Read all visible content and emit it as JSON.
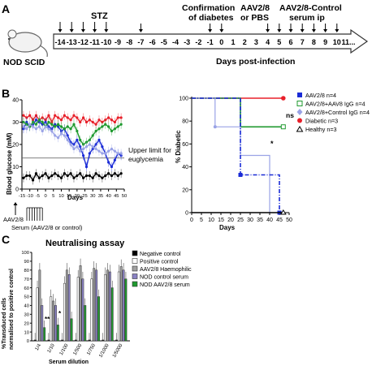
{
  "panelA": {
    "letter": "A",
    "mouse_label": "NOD SCID",
    "stz_label": "STZ",
    "confirm_label_1": "Confirmation",
    "confirm_label_2": "of diabetes",
    "aav_label_1": "AAV2/8",
    "aav_label_2": "or PBS",
    "serum_label_1": "AAV2/8-Control",
    "serum_label_2": "serum ip",
    "axis_label": "Days post-infection",
    "days": [
      "-14",
      "-13",
      "-12",
      "-11",
      "-10",
      "-9",
      "-8",
      "-7",
      "-6",
      "-5",
      "-4",
      "-3",
      "-2",
      "-1",
      "0",
      "1",
      "2",
      "3",
      "4",
      "5",
      "6",
      "7",
      "8",
      "9",
      "10",
      "11..."
    ]
  },
  "panelB": {
    "letter": "B",
    "glucose_ylabel": "Blood glucose (mM)",
    "glucose_xlabel": "Days",
    "upper_limit_1": "Upper limit for",
    "upper_limit_2": "euglycemia",
    "aav_arrow": "AAV2/8",
    "serum_arrow": "Serum (AAV2/8 or control)",
    "surv_ylabel": "% Diabetic",
    "surv_xlabel": "Days",
    "ns_label": "ns",
    "star_label": "*",
    "legend": [
      "AAV2/8 n=4",
      "AAV2/8+AAV8 IgG n=4",
      "AAV2/8+Control IgG n=4",
      "Diabetic n=3",
      "Healthy n=3"
    ]
  },
  "panelC": {
    "letter": "C",
    "title": "Neutralising assay",
    "ylabel_1": "%Transduced cells",
    "ylabel_2": "normalised to positive control",
    "xlabel": "Serum dilution",
    "sig_1": "**",
    "sig_2": "*",
    "legend": [
      "Negative control",
      "Positive control",
      "AAV2/8 Haemophilic",
      "NOD control serum",
      "NOD AAV2/8 serum"
    ]
  },
  "chart_data": [
    {
      "type": "line",
      "xlabel": "Days",
      "ylabel": "Blood glucose (mM)",
      "xlim": [
        -15,
        50
      ],
      "ylim": [
        0,
        40
      ],
      "xticks": [
        -15,
        -10,
        -5,
        0,
        5,
        10,
        15,
        20,
        25,
        30,
        35,
        40,
        45,
        50
      ],
      "yticks": [
        0,
        10,
        20,
        30,
        40
      ],
      "euglycemia_limit": 13.9,
      "series": [
        {
          "color": "#e8202a",
          "x": [
            -14,
            -12,
            -10,
            -8,
            -6,
            -4,
            -2,
            0,
            2,
            4,
            6,
            8,
            10,
            12,
            14,
            16,
            18,
            20,
            22,
            24,
            26,
            28,
            30,
            32,
            34,
            36,
            38,
            40,
            42,
            44,
            46,
            48
          ],
          "values": [
            33,
            32,
            33,
            31,
            33,
            31,
            32,
            31,
            33,
            30,
            33,
            32,
            31,
            33,
            32,
            31,
            33,
            32,
            30,
            32,
            30,
            31,
            30,
            29,
            31,
            30,
            31,
            32,
            31,
            30,
            32,
            32
          ]
        },
        {
          "color": "#1a2bd6",
          "x": [
            -14,
            -12,
            -10,
            -8,
            -6,
            -4,
            -2,
            0,
            2,
            4,
            6,
            8,
            10,
            12,
            14,
            16,
            18,
            20,
            22,
            24,
            26,
            28,
            30,
            32,
            34,
            36,
            38,
            40,
            42,
            44,
            46,
            48
          ],
          "values": [
            27,
            30,
            28,
            29,
            31,
            30,
            29,
            30,
            28,
            27,
            29,
            28,
            26,
            27,
            24,
            21,
            20,
            22,
            19,
            15,
            10,
            16,
            18,
            20,
            22,
            19,
            16,
            12,
            10,
            13,
            16,
            15
          ]
        },
        {
          "color": "#1f9a2f",
          "x": [
            -14,
            -12,
            -10,
            -8,
            -6,
            -4,
            -2,
            0,
            2,
            4,
            6,
            8,
            10,
            12,
            14,
            16,
            18,
            20,
            22,
            24,
            26,
            28,
            30,
            32,
            34,
            36,
            38,
            40,
            42,
            44,
            46,
            48
          ],
          "values": [
            30,
            29,
            28,
            30,
            29,
            31,
            30,
            28,
            30,
            29,
            28,
            29,
            28,
            27,
            28,
            27,
            29,
            26,
            22,
            20,
            21,
            22,
            24,
            26,
            27,
            28,
            29,
            28,
            26,
            27,
            28,
            29
          ]
        },
        {
          "color": "#9aa3e6",
          "x": [
            -14,
            -12,
            -10,
            -8,
            -6,
            -4,
            -2,
            0,
            2,
            4,
            6,
            8,
            10,
            12,
            14,
            16,
            18,
            20,
            22,
            24,
            26,
            28,
            30,
            32,
            34,
            36,
            38,
            40,
            42,
            44,
            46,
            48
          ],
          "values": [
            28,
            27,
            29,
            28,
            27,
            28,
            26,
            28,
            27,
            26,
            24,
            23,
            25,
            24,
            22,
            20,
            18,
            19,
            17,
            18,
            19,
            20,
            19,
            18,
            17,
            16,
            16,
            17,
            18,
            17,
            16,
            16
          ]
        },
        {
          "color": "#000000",
          "x": [
            -14,
            -12,
            -10,
            -8,
            -6,
            -4,
            -2,
            0,
            2,
            4,
            6,
            8,
            10,
            12,
            14,
            16,
            18,
            20,
            22,
            24,
            26,
            28,
            30,
            32,
            34,
            36,
            38,
            40,
            42,
            44,
            46,
            48
          ],
          "values": [
            5,
            6,
            6,
            4,
            7,
            5,
            6,
            7,
            5,
            6,
            7,
            6,
            5,
            7,
            6,
            7,
            5,
            6,
            7,
            5,
            6,
            6,
            5,
            7,
            6,
            5,
            6,
            7,
            6,
            7,
            6,
            7
          ]
        }
      ]
    },
    {
      "type": "line",
      "xlabel": "Days",
      "ylabel": "% Diabetic",
      "xlim": [
        0,
        50
      ],
      "ylim": [
        0,
        100
      ],
      "xticks": [
        0,
        5,
        10,
        15,
        20,
        25,
        30,
        35,
        40,
        45,
        50
      ],
      "yticks": [
        0,
        20,
        40,
        60,
        80,
        100
      ],
      "series": [
        {
          "name": "Diabetic n=3",
          "color": "#e8202a",
          "x": [
            0,
            47
          ],
          "values": [
            100,
            100
          ]
        },
        {
          "name": "AAV2/8+AAV8 IgG n=4",
          "color": "#1f9a2f",
          "x": [
            0,
            25,
            25,
            47
          ],
          "values": [
            100,
            100,
            75,
            75
          ]
        },
        {
          "name": "AAV2/8+Control IgG n=4",
          "color": "#9aa3e6",
          "x": [
            0,
            12,
            12,
            25,
            25,
            40,
            40
          ],
          "values": [
            100,
            100,
            75,
            75,
            50,
            50,
            0
          ]
        },
        {
          "name": "AAV2/8 n=4",
          "color": "#1a2bd6",
          "x": [
            0,
            25,
            25,
            35,
            35,
            45,
            45
          ],
          "values": [
            100,
            100,
            33,
            33,
            33,
            33,
            0
          ]
        },
        {
          "name": "Healthy n=3",
          "color": "#000000",
          "x": [
            0,
            47
          ],
          "values": [
            0,
            0
          ]
        }
      ]
    },
    {
      "type": "bar",
      "title": "Neutralising assay",
      "xlabel": "Serum dilution",
      "ylabel": "%Transduced cells normalised to positive control",
      "ylim": [
        0,
        100
      ],
      "yticks": [
        0,
        10,
        20,
        30,
        40,
        50,
        60,
        70,
        80,
        90,
        100
      ],
      "categories": [
        "1/4",
        "1/10",
        "1/100",
        "1/500",
        "1/750",
        "1/1000",
        "1/5000"
      ],
      "series": [
        {
          "name": "Negative control",
          "color": "#000000",
          "values": [
            1,
            1,
            1,
            1,
            1,
            1,
            1
          ]
        },
        {
          "name": "Positive control",
          "color": "#ffffff",
          "values": [
            60,
            50,
            65,
            72,
            70,
            75,
            78
          ]
        },
        {
          "name": "AAV2/8 Haemophilic",
          "color": "#a0a0a0",
          "values": [
            80,
            45,
            80,
            85,
            82,
            80,
            84
          ]
        },
        {
          "name": "NOD control serum",
          "color": "#8a82c4",
          "values": [
            40,
            40,
            75,
            70,
            80,
            78,
            80
          ]
        },
        {
          "name": "NOD AAV2/8 serum",
          "color": "#1f9a2f",
          "values": [
            15,
            18,
            25,
            40,
            50,
            60,
            70
          ]
        }
      ]
    }
  ]
}
